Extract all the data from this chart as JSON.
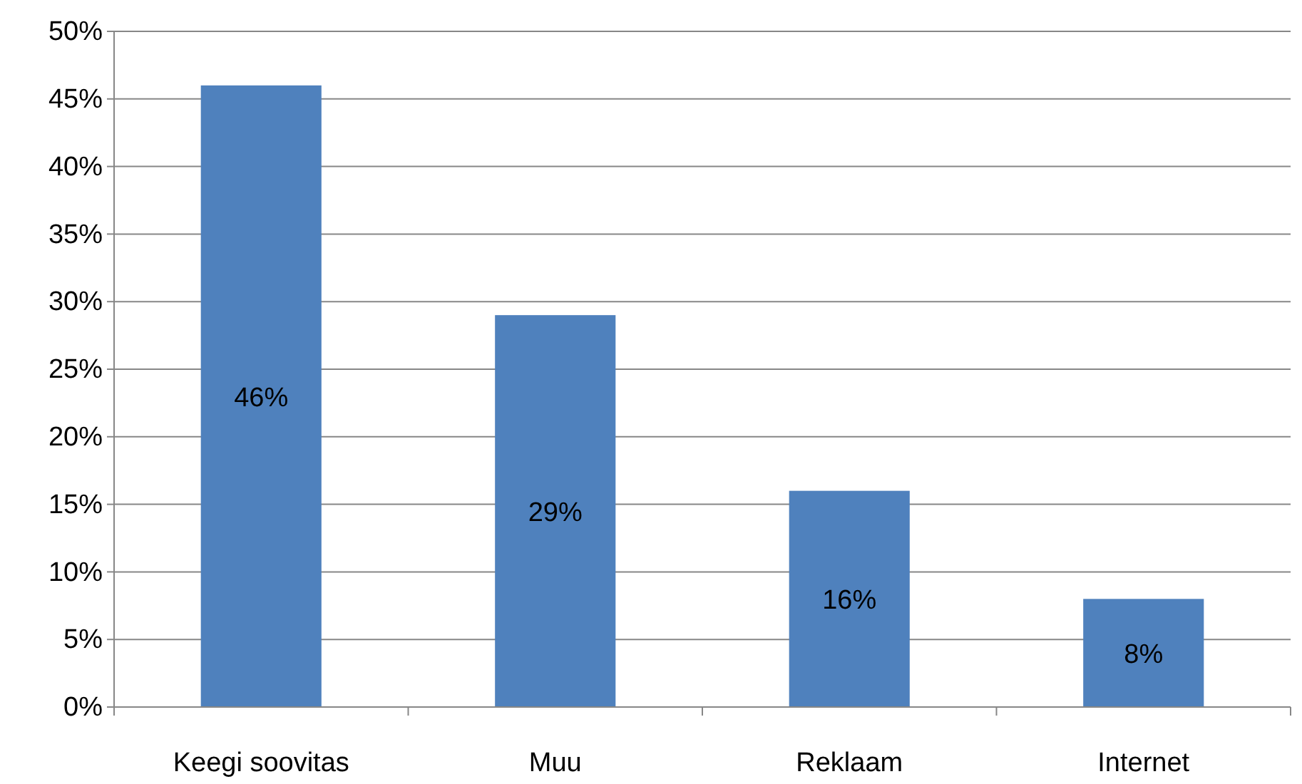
{
  "chart_data": {
    "type": "bar",
    "categories": [
      "Keegi soovitas",
      "Muu",
      "Reklaam",
      "Internet"
    ],
    "values": [
      46,
      29,
      16,
      8
    ],
    "value_labels": [
      "46%",
      "29%",
      "16%",
      "8%"
    ],
    "color": "#4f81bd",
    "ylim": [
      0,
      50
    ],
    "yticks": [
      {
        "value": 0,
        "label": "0%"
      },
      {
        "value": 5,
        "label": "5%"
      },
      {
        "value": 10,
        "label": "10%"
      },
      {
        "value": 15,
        "label": "15%"
      },
      {
        "value": 20,
        "label": "20%"
      },
      {
        "value": 25,
        "label": "25%"
      },
      {
        "value": 30,
        "label": "30%"
      },
      {
        "value": 35,
        "label": "35%"
      },
      {
        "value": 40,
        "label": "40%"
      },
      {
        "value": 45,
        "label": "45%"
      },
      {
        "value": 50,
        "label": "50%"
      }
    ],
    "grid": "y"
  }
}
